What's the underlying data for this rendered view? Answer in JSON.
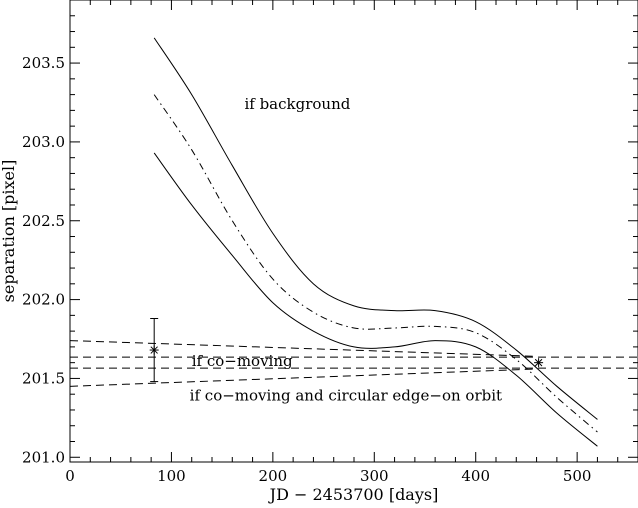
{
  "chart_data": {
    "type": "line",
    "title": "",
    "xlabel": "JD − 2453700 [days]",
    "ylabel": "separation [pixel]",
    "xlim": [
      0,
      560
    ],
    "ylim": [
      200.97,
      203.9
    ],
    "grid": false,
    "x_ticks": [
      0,
      100,
      200,
      300,
      400,
      500
    ],
    "x_tick_labels": [
      "0",
      "100",
      "200",
      "300",
      "400",
      "500"
    ],
    "y_ticks": [
      201.0,
      201.5,
      202.0,
      202.5,
      203.0,
      203.5
    ],
    "y_tick_labels": [
      "201.0",
      "201.5",
      "202.0",
      "202.5",
      "203.0",
      "203.5"
    ],
    "series": [
      {
        "style": "solid",
        "x": [
          83,
          120,
          160,
          200,
          240,
          280,
          320,
          360,
          400,
          440,
          480,
          520
        ],
        "y": [
          203.66,
          203.3,
          202.85,
          202.42,
          202.1,
          201.96,
          201.93,
          201.93,
          201.86,
          201.68,
          201.45,
          201.24
        ]
      },
      {
        "style": "dash-dot",
        "x": [
          83,
          120,
          160,
          200,
          240,
          280,
          320,
          360,
          400,
          440,
          480,
          520
        ],
        "y": [
          203.3,
          202.95,
          202.5,
          202.13,
          201.92,
          201.82,
          201.82,
          201.83,
          201.79,
          201.62,
          201.38,
          201.16
        ]
      },
      {
        "style": "solid",
        "x": [
          83,
          120,
          160,
          200,
          240,
          280,
          320,
          360,
          400,
          440,
          480,
          520
        ],
        "y": [
          202.93,
          202.6,
          202.28,
          201.98,
          201.8,
          201.7,
          201.7,
          201.74,
          201.7,
          201.52,
          201.28,
          201.07
        ]
      },
      {
        "style": "dashed",
        "x": [
          0,
          560
        ],
        "y": [
          201.635,
          201.635
        ]
      },
      {
        "style": "dashed",
        "x": [
          0,
          560
        ],
        "y": [
          201.565,
          201.565
        ]
      },
      {
        "style": "dashed",
        "x": [
          0,
          460
        ],
        "y": [
          201.74,
          201.64
        ]
      },
      {
        "style": "dashed",
        "x": [
          0,
          460
        ],
        "y": [
          201.45,
          201.56
        ]
      }
    ],
    "points": [
      {
        "x": 83,
        "y": 201.68,
        "err": 0.2
      },
      {
        "x": 462,
        "y": 201.6,
        "err": 0.0
      }
    ],
    "annotations": [
      {
        "text": "if background",
        "x": 172,
        "y": 203.21
      },
      {
        "text": "if co−moving",
        "x": 120,
        "y": 201.58
      },
      {
        "text": "if co−moving and circular edge−on orbit",
        "x": 118,
        "y": 201.36
      }
    ]
  }
}
